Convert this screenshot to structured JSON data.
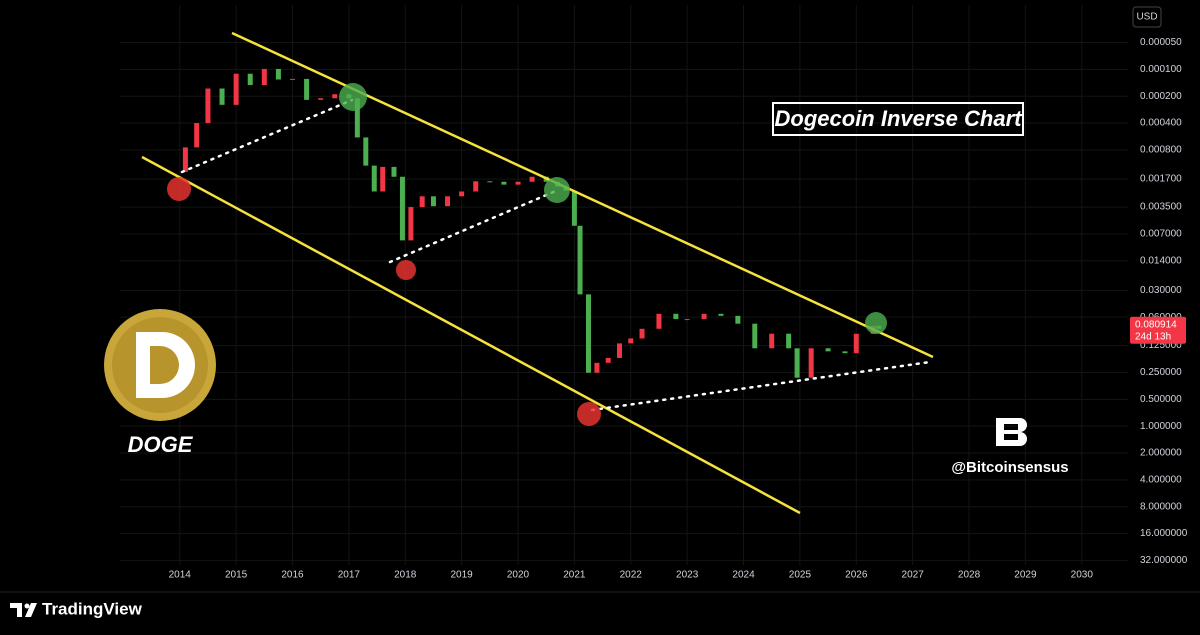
{
  "chart_data": {
    "type": "candlestick",
    "title": "Dogecoin Inverse Chart",
    "x": [
      2014.0,
      2014.1,
      2014.3,
      2014.5,
      2014.75,
      2015.0,
      2015.25,
      2015.5,
      2015.75,
      2016.0,
      2016.25,
      2016.5,
      2016.75,
      2017.0,
      2017.15,
      2017.3,
      2017.45,
      2017.6,
      2017.8,
      2017.95,
      2018.1,
      2018.3,
      2018.5,
      2018.75,
      2019.0,
      2019.25,
      2019.5,
      2019.75,
      2020.0,
      2020.25,
      2020.5,
      2020.7,
      2020.85,
      2021.0,
      2021.1,
      2021.25,
      2021.4,
      2021.6,
      2021.8,
      2022.0,
      2022.2,
      2022.5,
      2022.8,
      2023.0,
      2023.3,
      2023.6,
      2023.9,
      2024.2,
      2024.5,
      2024.8,
      2024.95,
      2025.2,
      2025.5,
      2025.8,
      2026.0,
      2026.3,
      2026.4
    ],
    "series": [
      {
        "name": "DOGE",
        "up_color": "#4caf50",
        "down_color": "#f23645",
        "values": [
          0.00141,
          0.00075,
          0.0004,
          0.000164,
          0.00025,
          0.000112,
          0.00015,
          9.9e-05,
          0.00013,
          0.000128,
          0.00022,
          0.000211,
          0.00019,
          0.000211,
          0.00058,
          0.0012,
          0.00234,
          0.00124,
          0.0016,
          0.00827,
          0.0035,
          0.00265,
          0.00342,
          0.00265,
          0.00234,
          0.0018,
          0.00182,
          0.00196,
          0.00182,
          0.0016,
          0.00182,
          0.00206,
          0.0023,
          0.00567,
          0.0333,
          0.252,
          0.195,
          0.172,
          0.118,
          0.104,
          0.081,
          0.055,
          0.063,
          0.063,
          0.055,
          0.058,
          0.071,
          0.134,
          0.092,
          0.134,
          0.286,
          0.134,
          0.145,
          0.152,
          0.092,
          0.075,
          0.080914
        ]
      }
    ],
    "xlim": [
      2012.94,
      2030.82
    ],
    "xticks": [
      2014,
      2015,
      2016,
      2017,
      2018,
      2019,
      2020,
      2021,
      2022,
      2023,
      2024,
      2025,
      2026,
      2027,
      2028,
      2029,
      2030
    ],
    "ylim": [
      36,
      1.9e-05
    ],
    "log_scale": true,
    "yticks": [
      {
        "value": 5e-05,
        "label": "0.000050"
      },
      {
        "value": 0.0001,
        "label": "0.000100"
      },
      {
        "value": 0.0002,
        "label": "0.000200"
      },
      {
        "value": 0.0004,
        "label": "0.000400"
      },
      {
        "value": 0.0008,
        "label": "0.000800"
      },
      {
        "value": 0.0017,
        "label": "0.001700"
      },
      {
        "value": 0.0035,
        "label": "0.003500"
      },
      {
        "value": 0.007,
        "label": "0.007000"
      },
      {
        "value": 0.014,
        "label": "0.014000"
      },
      {
        "value": 0.03,
        "label": "0.030000"
      },
      {
        "value": 0.06,
        "label": "0.060000"
      },
      {
        "value": 0.125,
        "label": "0.125000"
      },
      {
        "value": 0.25,
        "label": "0.250000"
      },
      {
        "value": 0.5,
        "label": "0.500000"
      },
      {
        "value": 1,
        "label": "1.000000"
      },
      {
        "value": 2,
        "label": "2.000000"
      },
      {
        "value": 4,
        "label": "4.000000"
      },
      {
        "value": 8,
        "label": "8.000000"
      },
      {
        "value": 16,
        "label": "16.000000"
      },
      {
        "value": 32,
        "label": "32.000000"
      }
    ],
    "grid": true,
    "countdown": "24d 13h"
  },
  "ui": {
    "currency": "USD",
    "logo_text": "DOGE",
    "handle": "@Bitcoinsensus",
    "brand": "TradingView"
  }
}
